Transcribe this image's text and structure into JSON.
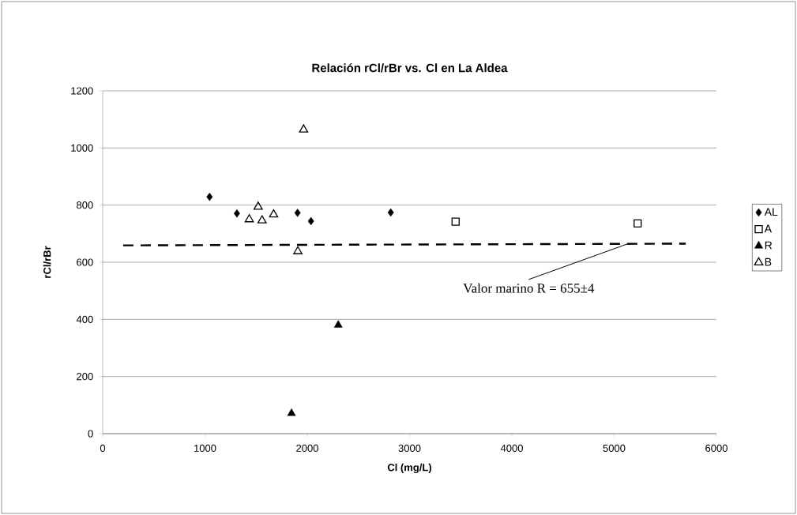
{
  "chart_data": {
    "type": "scatter",
    "title": "Relación rCl/rBr vs. Cl en La Aldea",
    "xlabel": "Cl (mg/L)",
    "ylabel": "rCl/rBr",
    "xlim": [
      0,
      6000
    ],
    "ylim": [
      0,
      1200
    ],
    "xticks": [
      0,
      1000,
      2000,
      3000,
      4000,
      5000,
      6000
    ],
    "yticks": [
      0,
      200,
      400,
      600,
      800,
      1000,
      1200
    ],
    "grid": "y",
    "legend": "right",
    "series": [
      {
        "name": "AL",
        "color": "#000000",
        "marker": "diamond",
        "x": [
          1045,
          1312,
          1905,
          2036,
          2816
        ],
        "values": [
          829,
          771,
          773,
          744,
          774
        ]
      },
      {
        "name": "A",
        "color": "#000000",
        "marker": "square-open",
        "x": [
          3450,
          5230
        ],
        "values": [
          742,
          736
        ]
      },
      {
        "name": "R",
        "color": "#000000",
        "marker": "triangle",
        "x": [
          2303,
          1846
        ],
        "values": [
          380,
          71
        ]
      },
      {
        "name": "B",
        "color": "#000000",
        "marker": "triangle-open",
        "x": [
          1964,
          1520,
          1433,
          1558,
          1671,
          1908
        ],
        "values": [
          1064,
          794,
          750,
          746,
          767,
          638
        ]
      },
      {
        "type": "line",
        "color": "#000000",
        "marker": "none",
        "line_style": "dashed",
        "x": [
          200,
          5700
        ],
        "values": [
          659,
          665
        ]
      }
    ],
    "annotations": [
      {
        "text": "Valor marino R = 655±4",
        "x": 5130,
        "y": 664
      }
    ]
  }
}
